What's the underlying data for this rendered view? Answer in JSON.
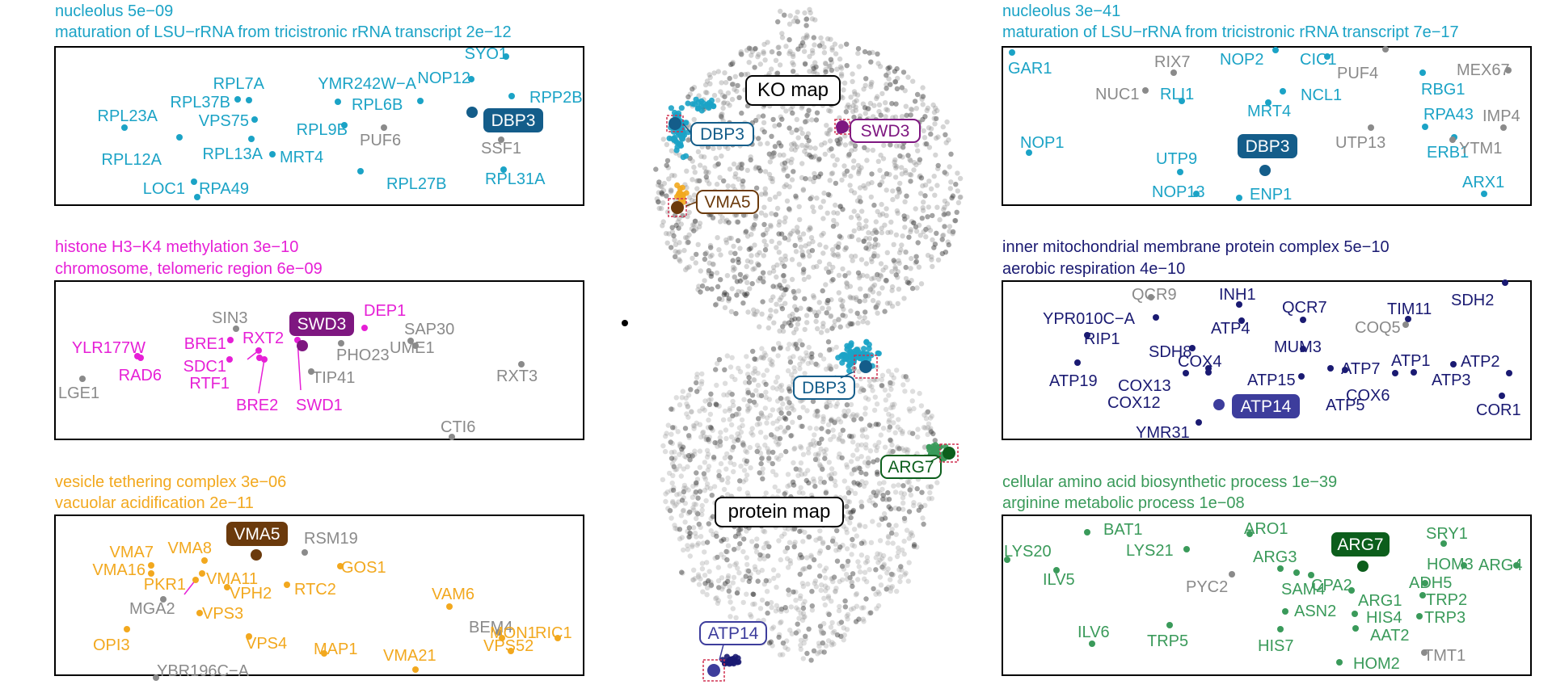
{
  "colors": {
    "cyan": "#1ba3c6",
    "dbp3_dark": "#145d8a",
    "magenta": "#e61fd6",
    "swd3_dark": "#7e1780",
    "orange": "#f2a81e",
    "vma5_dark": "#6b3a0c",
    "navy": "#1a1a72",
    "atp14_label": "#3d3d9c",
    "green": "#3a9a5a",
    "arg7_dark": "#0c5e1c",
    "gray": "#8a8a8a",
    "black": "#000000"
  },
  "center": {
    "ko_map_label": "KO map",
    "protein_map_label": "protein map",
    "callouts": [
      {
        "text": "DBP3",
        "color": "#145d8a"
      },
      {
        "text": "SWD3",
        "color": "#7e1780"
      },
      {
        "text": "VMA5",
        "color": "#6b3a0c"
      },
      {
        "text": "DBP3",
        "color": "#145d8a"
      },
      {
        "text": "ARG7",
        "color": "#0c5e1c"
      },
      {
        "text": "ATP14",
        "color": "#3d3d9c"
      }
    ]
  },
  "panels": [
    {
      "id": "dbp3-left",
      "header": [
        "nucleolus 5e−09",
        "maturation of LSU−rRNA from tricistronic rRNA transcript 2e−12"
      ],
      "header_color": "#1ba3c6",
      "highlight": {
        "text": "DBP3",
        "color": "#145d8a"
      },
      "labels": [
        {
          "text": "SYO1",
          "c": "cyan"
        },
        {
          "text": "NOP12",
          "c": "cyan"
        },
        {
          "text": "RPP2B",
          "c": "cyan"
        },
        {
          "text": "RPL7A",
          "c": "cyan"
        },
        {
          "text": "YMR242W−A",
          "c": "cyan"
        },
        {
          "text": "RPL37B",
          "c": "cyan"
        },
        {
          "text": "RPL6B",
          "c": "cyan"
        },
        {
          "text": "RPL23A",
          "c": "cyan"
        },
        {
          "text": "VPS75",
          "c": "cyan"
        },
        {
          "text": "RPL9B",
          "c": "cyan"
        },
        {
          "text": "PUF6",
          "c": "gray"
        },
        {
          "text": "SSF1",
          "c": "gray"
        },
        {
          "text": "RPL12A",
          "c": "cyan"
        },
        {
          "text": "RPL13A",
          "c": "cyan"
        },
        {
          "text": "MRT4",
          "c": "cyan"
        },
        {
          "text": "RPL31A",
          "c": "cyan"
        },
        {
          "text": "LOC1",
          "c": "cyan"
        },
        {
          "text": "RPA49",
          "c": "cyan"
        },
        {
          "text": "RPL27B",
          "c": "cyan"
        }
      ]
    },
    {
      "id": "swd3-left",
      "header": [
        "histone H3−K4 methylation 3e−10",
        "chromosome, telomeric region 6e−09"
      ],
      "header_color": "#e61fd6",
      "highlight": {
        "text": "SWD3",
        "color": "#7e1780"
      },
      "labels": [
        {
          "text": "SIN3",
          "c": "gray"
        },
        {
          "text": "DEP1",
          "c": "magenta"
        },
        {
          "text": "SAP30",
          "c": "gray"
        },
        {
          "text": "YLR177W",
          "c": "magenta"
        },
        {
          "text": "BRE1",
          "c": "magenta"
        },
        {
          "text": "RXT2",
          "c": "magenta"
        },
        {
          "text": "PHO23",
          "c": "gray"
        },
        {
          "text": "UME1",
          "c": "gray"
        },
        {
          "text": "RAD6",
          "c": "magenta"
        },
        {
          "text": "SDC1",
          "c": "magenta"
        },
        {
          "text": "RXT3",
          "c": "gray"
        },
        {
          "text": "RTF1",
          "c": "magenta"
        },
        {
          "text": "TIP41",
          "c": "gray"
        },
        {
          "text": "LGE1",
          "c": "gray"
        },
        {
          "text": "BRE2",
          "c": "magenta"
        },
        {
          "text": "SWD1",
          "c": "magenta"
        },
        {
          "text": "CTI6",
          "c": "gray"
        }
      ]
    },
    {
      "id": "vma5-left",
      "header": [
        "vesicle tethering complex 3e−06",
        "vacuolar acidification 2e−11"
      ],
      "header_color": "#f2a81e",
      "highlight": {
        "text": "VMA5",
        "color": "#6b3a0c"
      },
      "labels": [
        {
          "text": "RSM19",
          "c": "gray"
        },
        {
          "text": "VMA7",
          "c": "orange"
        },
        {
          "text": "VMA8",
          "c": "orange"
        },
        {
          "text": "VMA16",
          "c": "orange"
        },
        {
          "text": "GOS1",
          "c": "orange"
        },
        {
          "text": "VMA11",
          "c": "orange"
        },
        {
          "text": "PKR1",
          "c": "orange"
        },
        {
          "text": "VPH2",
          "c": "orange"
        },
        {
          "text": "RTC2",
          "c": "orange"
        },
        {
          "text": "VAM6",
          "c": "orange"
        },
        {
          "text": "MGA2",
          "c": "gray"
        },
        {
          "text": "VPS3",
          "c": "orange"
        },
        {
          "text": "BEM4",
          "c": "gray"
        },
        {
          "text": "MON1",
          "c": "orange"
        },
        {
          "text": "RIC1",
          "c": "orange"
        },
        {
          "text": "VPS52",
          "c": "orange"
        },
        {
          "text": "OPI3",
          "c": "orange"
        },
        {
          "text": "VPS4",
          "c": "orange"
        },
        {
          "text": "MAP1",
          "c": "orange"
        },
        {
          "text": "VMA21",
          "c": "orange"
        },
        {
          "text": "YBR196C−A",
          "c": "gray"
        }
      ]
    },
    {
      "id": "dbp3-right",
      "header": [
        "nucleolus 3e−41",
        "maturation of LSU−rRNA from tricistronic rRNA transcript 7e−17"
      ],
      "header_color": "#1ba3c6",
      "highlight": {
        "text": "DBP3",
        "color": "#145d8a"
      },
      "labels": [
        {
          "text": "GAR1",
          "c": "cyan"
        },
        {
          "text": "RIX7",
          "c": "gray"
        },
        {
          "text": "NOP2",
          "c": "cyan"
        },
        {
          "text": "CIC1",
          "c": "cyan"
        },
        {
          "text": "PUF4",
          "c": "gray"
        },
        {
          "text": "MEX67",
          "c": "gray"
        },
        {
          "text": "NUC1",
          "c": "gray"
        },
        {
          "text": "RLI1",
          "c": "cyan"
        },
        {
          "text": "NCL1",
          "c": "cyan"
        },
        {
          "text": "RBG1",
          "c": "cyan"
        },
        {
          "text": "MRT4",
          "c": "cyan"
        },
        {
          "text": "RPA43",
          "c": "cyan"
        },
        {
          "text": "IMP4",
          "c": "gray"
        },
        {
          "text": "NOP1",
          "c": "cyan"
        },
        {
          "text": "UTP13",
          "c": "gray"
        },
        {
          "text": "ERB1",
          "c": "cyan"
        },
        {
          "text": "YTM1",
          "c": "gray"
        },
        {
          "text": "UTP9",
          "c": "cyan"
        },
        {
          "text": "ARX1",
          "c": "cyan"
        },
        {
          "text": "NOP13",
          "c": "cyan"
        },
        {
          "text": "ENP1",
          "c": "cyan"
        }
      ]
    },
    {
      "id": "atp14-right",
      "header": [
        "inner mitochondrial membrane protein complex 5e−10",
        "aerobic respiration 4e−10"
      ],
      "header_color": "#1a1a72",
      "highlight": {
        "text": "ATP14",
        "color": "#3d3d9c"
      },
      "labels": [
        {
          "text": "QCR9",
          "c": "gray"
        },
        {
          "text": "INH1",
          "c": "navy"
        },
        {
          "text": "SDH2",
          "c": "navy"
        },
        {
          "text": "YPR010C−A",
          "c": "navy"
        },
        {
          "text": "QCR7",
          "c": "navy"
        },
        {
          "text": "TIM11",
          "c": "navy"
        },
        {
          "text": "ATP4",
          "c": "navy"
        },
        {
          "text": "COQ5",
          "c": "gray"
        },
        {
          "text": "RIP1",
          "c": "navy"
        },
        {
          "text": "SDH8",
          "c": "navy"
        },
        {
          "text": "MUM3",
          "c": "navy"
        },
        {
          "text": "COX4",
          "c": "navy"
        },
        {
          "text": "ATP1",
          "c": "navy"
        },
        {
          "text": "ATP2",
          "c": "navy"
        },
        {
          "text": "ATP7",
          "c": "navy"
        },
        {
          "text": "ATP19",
          "c": "navy"
        },
        {
          "text": "COX13",
          "c": "navy"
        },
        {
          "text": "ATP15",
          "c": "navy"
        },
        {
          "text": "ATP3",
          "c": "navy"
        },
        {
          "text": "COX6",
          "c": "navy"
        },
        {
          "text": "COX12",
          "c": "navy"
        },
        {
          "text": "ATP5",
          "c": "navy"
        },
        {
          "text": "COR1",
          "c": "navy"
        },
        {
          "text": "YMR31",
          "c": "navy"
        }
      ]
    },
    {
      "id": "arg7-right",
      "header": [
        "cellular amino acid biosynthetic process 1e−39",
        "arginine metabolic process 1e−08"
      ],
      "header_color": "#3a9a5a",
      "highlight": {
        "text": "ARG7",
        "color": "#0c5e1c"
      },
      "labels": [
        {
          "text": "BAT1",
          "c": "green"
        },
        {
          "text": "ARO1",
          "c": "green"
        },
        {
          "text": "SRY1",
          "c": "green"
        },
        {
          "text": "LYS20",
          "c": "green"
        },
        {
          "text": "LYS21",
          "c": "green"
        },
        {
          "text": "ARG3",
          "c": "green"
        },
        {
          "text": "HOM3",
          "c": "green"
        },
        {
          "text": "ARG4",
          "c": "green"
        },
        {
          "text": "ILV5",
          "c": "green"
        },
        {
          "text": "PYC2",
          "c": "gray"
        },
        {
          "text": "SAM4",
          "c": "green"
        },
        {
          "text": "CPA2",
          "c": "green"
        },
        {
          "text": "ADH5",
          "c": "green"
        },
        {
          "text": "ARG1",
          "c": "green"
        },
        {
          "text": "TRP2",
          "c": "green"
        },
        {
          "text": "ASN2",
          "c": "green"
        },
        {
          "text": "HIS4",
          "c": "green"
        },
        {
          "text": "TRP3",
          "c": "green"
        },
        {
          "text": "ILV6",
          "c": "green"
        },
        {
          "text": "TRP5",
          "c": "green"
        },
        {
          "text": "AAT2",
          "c": "green"
        },
        {
          "text": "HIS7",
          "c": "green"
        },
        {
          "text": "TMT1",
          "c": "gray"
        },
        {
          "text": "HOM2",
          "c": "green"
        }
      ]
    }
  ]
}
